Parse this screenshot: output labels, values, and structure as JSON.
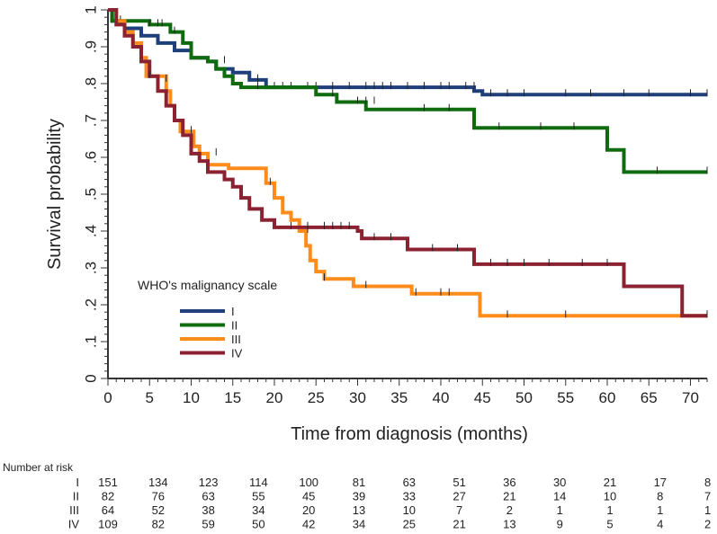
{
  "chart_data": {
    "type": "line",
    "subtype": "kaplan-meier",
    "title": "",
    "xlabel": "Time from diagnosis (months)",
    "ylabel": "Survival probability",
    "xlim": [
      0,
      72
    ],
    "ylim": [
      0,
      1
    ],
    "x_ticks": [
      0,
      5,
      10,
      15,
      20,
      25,
      30,
      35,
      40,
      45,
      50,
      55,
      60,
      65,
      70
    ],
    "x_tick_labels": [
      "0",
      "5",
      "10",
      "15",
      "20",
      "25",
      "30",
      "35",
      "40",
      "45",
      "50",
      "55",
      "60",
      "65",
      "70"
    ],
    "y_ticks": [
      0,
      0.1,
      0.2,
      0.3,
      0.4,
      0.5,
      0.6,
      0.7,
      0.8,
      0.9,
      1
    ],
    "y_tick_labels": [
      "0",
      ".1",
      ".2",
      ".3",
      ".4",
      ".5",
      ".6",
      ".7",
      ".8",
      ".9",
      "1"
    ],
    "grid": false,
    "legend": {
      "title": "WHO's malignancy scale",
      "placement": "bottom-left"
    },
    "series": [
      {
        "name": "I",
        "color": "#1f3f7a",
        "steps": [
          [
            0,
            1
          ],
          [
            0.5,
            0.97
          ],
          [
            2,
            0.95
          ],
          [
            4,
            0.93
          ],
          [
            6,
            0.91
          ],
          [
            8,
            0.89
          ],
          [
            10,
            0.87
          ],
          [
            12,
            0.86
          ],
          [
            13,
            0.84
          ],
          [
            15,
            0.83
          ],
          [
            17,
            0.81
          ],
          [
            19,
            0.79
          ],
          [
            44,
            0.78
          ],
          [
            45,
            0.77
          ],
          [
            72,
            0.77
          ]
        ],
        "censored": [
          [
            3,
            0.93
          ],
          [
            14,
            0.86
          ],
          [
            18,
            0.81
          ],
          [
            20,
            0.79
          ],
          [
            21,
            0.79
          ],
          [
            22,
            0.79
          ],
          [
            24,
            0.79
          ],
          [
            25,
            0.79
          ],
          [
            27,
            0.79
          ],
          [
            29,
            0.79
          ],
          [
            31,
            0.79
          ],
          [
            32,
            0.79
          ],
          [
            33,
            0.79
          ],
          [
            34,
            0.79
          ],
          [
            36,
            0.79
          ],
          [
            38,
            0.79
          ],
          [
            40,
            0.79
          ],
          [
            41,
            0.79
          ],
          [
            43,
            0.79
          ],
          [
            44,
            0.79
          ],
          [
            46,
            0.77
          ],
          [
            48,
            0.77
          ],
          [
            50,
            0.77
          ],
          [
            55,
            0.77
          ],
          [
            58,
            0.77
          ],
          [
            62,
            0.77
          ],
          [
            65,
            0.77
          ],
          [
            70,
            0.77
          ],
          [
            72,
            0.77
          ]
        ]
      },
      {
        "name": "II",
        "color": "#0e6b0e",
        "steps": [
          [
            0,
            1
          ],
          [
            0.5,
            0.97
          ],
          [
            5,
            0.96
          ],
          [
            7.5,
            0.94
          ],
          [
            9,
            0.91
          ],
          [
            10,
            0.87
          ],
          [
            12,
            0.86
          ],
          [
            13,
            0.84
          ],
          [
            14,
            0.82
          ],
          [
            15,
            0.8
          ],
          [
            16,
            0.79
          ],
          [
            25,
            0.77
          ],
          [
            27.5,
            0.75
          ],
          [
            31,
            0.73
          ],
          [
            44,
            0.68
          ],
          [
            60,
            0.62
          ],
          [
            62,
            0.56
          ],
          [
            72,
            0.56
          ]
        ],
        "censored": [
          [
            1.5,
            0.97
          ],
          [
            5,
            0.96
          ],
          [
            6,
            0.96
          ],
          [
            6.5,
            0.96
          ],
          [
            8,
            0.94
          ],
          [
            18,
            0.79
          ],
          [
            27,
            0.77
          ],
          [
            30,
            0.75
          ],
          [
            31,
            0.75
          ],
          [
            32,
            0.75
          ],
          [
            38,
            0.73
          ],
          [
            41,
            0.73
          ],
          [
            47,
            0.68
          ],
          [
            52,
            0.68
          ],
          [
            56,
            0.68
          ],
          [
            66,
            0.56
          ],
          [
            72,
            0.56
          ]
        ]
      },
      {
        "name": "III",
        "color": "#ff8c1a",
        "steps": [
          [
            0,
            1
          ],
          [
            1,
            0.97
          ],
          [
            2,
            0.94
          ],
          [
            3,
            0.91
          ],
          [
            4,
            0.87
          ],
          [
            4.6,
            0.82
          ],
          [
            7,
            0.78
          ],
          [
            7.5,
            0.74
          ],
          [
            8,
            0.7
          ],
          [
            8.7,
            0.67
          ],
          [
            10.3,
            0.63
          ],
          [
            11,
            0.61
          ],
          [
            12,
            0.58
          ],
          [
            14.5,
            0.57
          ],
          [
            19,
            0.53
          ],
          [
            20,
            0.49
          ],
          [
            21,
            0.45
          ],
          [
            22,
            0.43
          ],
          [
            23,
            0.4
          ],
          [
            23.8,
            0.36
          ],
          [
            24.3,
            0.32
          ],
          [
            25,
            0.29
          ],
          [
            26,
            0.27
          ],
          [
            29.5,
            0.25
          ],
          [
            36.5,
            0.23
          ],
          [
            44.7,
            0.17
          ],
          [
            72,
            0.17
          ]
        ],
        "censored": [
          [
            7,
            0.81
          ],
          [
            10,
            0.67
          ],
          [
            13,
            0.61
          ],
          [
            19.5,
            0.53
          ],
          [
            24,
            0.4
          ],
          [
            26,
            0.27
          ],
          [
            31,
            0.25
          ],
          [
            37,
            0.23
          ],
          [
            40,
            0.23
          ],
          [
            41,
            0.23
          ],
          [
            48,
            0.17
          ],
          [
            55,
            0.17
          ],
          [
            72,
            0.17
          ]
        ]
      },
      {
        "name": "IV",
        "color": "#8b2232",
        "steps": [
          [
            0,
            1
          ],
          [
            1,
            0.96
          ],
          [
            2,
            0.93
          ],
          [
            3,
            0.9
          ],
          [
            4,
            0.86
          ],
          [
            5,
            0.82
          ],
          [
            6,
            0.78
          ],
          [
            7,
            0.74
          ],
          [
            8,
            0.7
          ],
          [
            9,
            0.66
          ],
          [
            10,
            0.61
          ],
          [
            11,
            0.59
          ],
          [
            12,
            0.56
          ],
          [
            14,
            0.54
          ],
          [
            15,
            0.52
          ],
          [
            16,
            0.49
          ],
          [
            17,
            0.46
          ],
          [
            18.5,
            0.43
          ],
          [
            20,
            0.41
          ],
          [
            30,
            0.4
          ],
          [
            30.5,
            0.38
          ],
          [
            36,
            0.35
          ],
          [
            44,
            0.31
          ],
          [
            62,
            0.25
          ],
          [
            69,
            0.17
          ],
          [
            72,
            0.17
          ]
        ],
        "censored": [
          [
            5,
            0.82
          ],
          [
            22,
            0.41
          ],
          [
            24,
            0.41
          ],
          [
            26,
            0.41
          ],
          [
            27,
            0.41
          ],
          [
            28,
            0.41
          ],
          [
            29,
            0.41
          ],
          [
            32,
            0.38
          ],
          [
            34,
            0.38
          ],
          [
            39,
            0.35
          ],
          [
            42,
            0.35
          ],
          [
            46,
            0.31
          ],
          [
            48,
            0.31
          ],
          [
            50,
            0.31
          ],
          [
            53,
            0.31
          ],
          [
            57,
            0.31
          ],
          [
            60,
            0.31
          ],
          [
            72,
            0.17
          ]
        ]
      }
    ],
    "risk_table": {
      "title": "Number at risk",
      "times": [
        0,
        6,
        12,
        18,
        24,
        30,
        36,
        42,
        48,
        54,
        60,
        66,
        72
      ],
      "rows": [
        {
          "label": "I",
          "values": [
            "151",
            "134",
            "123",
            "114",
            "100",
            "81",
            "63",
            "51",
            "36",
            "30",
            "21",
            "17",
            "8"
          ]
        },
        {
          "label": "II",
          "values": [
            "82",
            "76",
            "63",
            "55",
            "45",
            "39",
            "33",
            "27",
            "21",
            "14",
            "10",
            "8",
            "7"
          ]
        },
        {
          "label": "III",
          "values": [
            "64",
            "52",
            "38",
            "34",
            "20",
            "13",
            "10",
            "7",
            "2",
            "1",
            "1",
            "1",
            "1"
          ]
        },
        {
          "label": "IV",
          "values": [
            "109",
            "82",
            "59",
            "50",
            "42",
            "34",
            "25",
            "21",
            "13",
            "9",
            "5",
            "4",
            "2"
          ]
        }
      ]
    }
  }
}
